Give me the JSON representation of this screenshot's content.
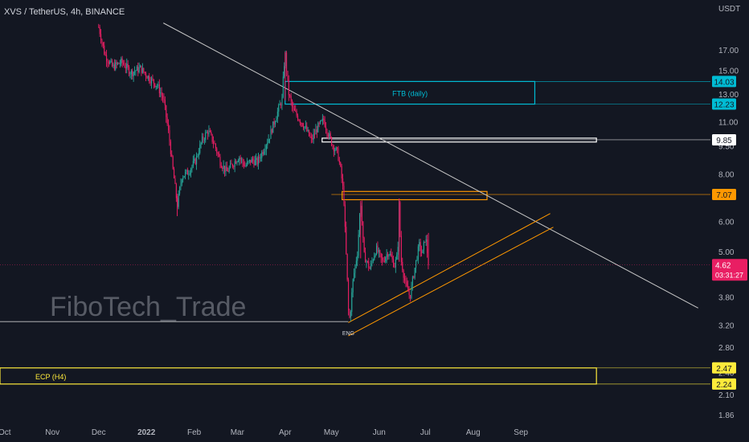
{
  "header": {
    "symbol": "XVS / TetherUS, 4h, BINANCE"
  },
  "watermark": "FiboTech_Trade",
  "colors": {
    "bg": "#131722",
    "text": "#d1d4dc",
    "axis_text": "#b2b5be",
    "up": "#26a69a",
    "down": "#e91e63",
    "cyan": "#00bcd4",
    "orange": "#ff9800",
    "yellow": "#ffeb3b",
    "white": "#ffffff",
    "last": "#e91e63",
    "line": "#c8c8c8"
  },
  "chart_data": {
    "type": "candlestick",
    "title": "XVS / TetherUS, 4h, BINANCE",
    "y_scale": "log",
    "y_unit": "USDT",
    "ylim": [
      1.78,
      19.5
    ],
    "y_ticks": [
      "17.00",
      "15.00",
      "13.00",
      "11.00",
      "9.50",
      "8.00",
      "6.00",
      "5.00",
      "3.80",
      "3.20",
      "2.80",
      "2.40",
      "2.10",
      "1.86"
    ],
    "x_ticks": [
      "Oct",
      "Nov",
      "Dec",
      "2022",
      "Feb",
      "Mar",
      "Apr",
      "May",
      "Jun",
      "Jul",
      "Aug",
      "Sep"
    ],
    "price_trace": [
      [
        "2021-12-01",
        19.5
      ],
      [
        "2021-12-05",
        16.5
      ],
      [
        "2021-12-10",
        15.3
      ],
      [
        "2021-12-16",
        15.8
      ],
      [
        "2021-12-22",
        14.8
      ],
      [
        "2021-12-28",
        15.2
      ],
      [
        "2022-01-03",
        14.3
      ],
      [
        "2022-01-08",
        13.7
      ],
      [
        "2022-01-12",
        12.6
      ],
      [
        "2022-01-15",
        10.5
      ],
      [
        "2022-01-18",
        8.3
      ],
      [
        "2022-01-21",
        6.6
      ],
      [
        "2022-01-24",
        7.9
      ],
      [
        "2022-01-28",
        8.1
      ],
      [
        "2022-02-02",
        8.7
      ],
      [
        "2022-02-06",
        9.8
      ],
      [
        "2022-02-10",
        10.4
      ],
      [
        "2022-02-14",
        9.6
      ],
      [
        "2022-02-18",
        8.6
      ],
      [
        "2022-02-22",
        8.1
      ],
      [
        "2022-02-26",
        8.5
      ],
      [
        "2022-03-02",
        8.9
      ],
      [
        "2022-03-06",
        8.4
      ],
      [
        "2022-03-10",
        8.7
      ],
      [
        "2022-03-14",
        8.6
      ],
      [
        "2022-03-18",
        9.3
      ],
      [
        "2022-03-22",
        10.1
      ],
      [
        "2022-03-26",
        11.3
      ],
      [
        "2022-03-30",
        12.6
      ],
      [
        "2022-04-01",
        16.8
      ],
      [
        "2022-04-03",
        13.2
      ],
      [
        "2022-04-06",
        11.8
      ],
      [
        "2022-04-10",
        11.2
      ],
      [
        "2022-04-14",
        10.6
      ],
      [
        "2022-04-18",
        9.8
      ],
      [
        "2022-04-22",
        10.6
      ],
      [
        "2022-04-26",
        11.1
      ],
      [
        "2022-04-29",
        10.2
      ],
      [
        "2022-05-02",
        9.5
      ],
      [
        "2022-05-05",
        9.1
      ],
      [
        "2022-05-07",
        8.2
      ],
      [
        "2022-05-09",
        7.0
      ],
      [
        "2022-05-10",
        5.5
      ],
      [
        "2022-05-12",
        3.5
      ],
      [
        "2022-05-13",
        3.3
      ],
      [
        "2022-05-15",
        4.2
      ],
      [
        "2022-05-18",
        5.0
      ],
      [
        "2022-05-20",
        6.8
      ],
      [
        "2022-05-22",
        4.9
      ],
      [
        "2022-05-26",
        4.5
      ],
      [
        "2022-05-30",
        5.1
      ],
      [
        "2022-06-03",
        4.7
      ],
      [
        "2022-06-07",
        5.0
      ],
      [
        "2022-06-11",
        4.6
      ],
      [
        "2022-06-13",
        4.9
      ],
      [
        "2022-06-14",
        6.8
      ],
      [
        "2022-06-15",
        4.8
      ],
      [
        "2022-06-18",
        4.1
      ],
      [
        "2022-06-21",
        3.8
      ],
      [
        "2022-06-24",
        4.5
      ],
      [
        "2022-06-27",
        5.2
      ],
      [
        "2022-06-29",
        4.9
      ],
      [
        "2022-07-01",
        5.5
      ],
      [
        "2022-07-03",
        4.62
      ]
    ],
    "zones": [
      {
        "label": "FTB (daily)",
        "top": 14.03,
        "bottom": 12.23,
        "x_from": "2022-04-01",
        "x_to": "2022-09-10",
        "color": "#00bcd4"
      },
      {
        "label": "",
        "top": 9.95,
        "bottom": 9.72,
        "x_from": "2022-04-25",
        "x_to": "2022-10-20",
        "color": "#ffffff"
      },
      {
        "label": "",
        "top": 7.2,
        "bottom": 6.85,
        "x_from": "2022-05-08",
        "x_to": "2022-08-10",
        "color": "#ff9800"
      },
      {
        "label": "ECP (H4)",
        "top": 2.47,
        "bottom": 2.24,
        "x_from": "2021-09-28",
        "x_to": "2022-10-20",
        "color": "#ffeb3b"
      }
    ],
    "price_labels": [
      {
        "value": 14.03,
        "text": "14.03",
        "color": "#00bcd4",
        "text_color": "#131722"
      },
      {
        "value": 12.23,
        "text": "12.23",
        "color": "#00bcd4",
        "text_color": "#131722"
      },
      {
        "value": 9.85,
        "text": "9.85",
        "color": "#ffffff",
        "text_color": "#131722"
      },
      {
        "value": 7.07,
        "text": "7.07",
        "color": "#ff9800",
        "text_color": "#131722"
      },
      {
        "value": 2.47,
        "text": "2.47",
        "color": "#ffeb3b",
        "text_color": "#131722"
      },
      {
        "value": 2.24,
        "text": "2.24",
        "color": "#ffeb3b",
        "text_color": "#131722"
      }
    ],
    "last_price": {
      "value": 4.62,
      "text": "4.62",
      "countdown": "03:31:27"
    },
    "trendline": {
      "from": [
        "2022-01-12",
        20.0
      ],
      "to": [
        "2022-12-25",
        3.55
      ]
    },
    "channel": [
      {
        "from": [
          "2022-05-12",
          3.25
        ],
        "to": [
          "2022-09-20",
          6.3
        ]
      },
      {
        "from": [
          "2022-05-12",
          3.0
        ],
        "to": [
          "2022-09-22",
          5.8
        ]
      }
    ],
    "support_line": {
      "value": 3.27,
      "x_from": "2021-09-28",
      "x_to": "2022-05-12"
    },
    "annotation": {
      "text": "ENG",
      "date": "2022-05-12",
      "value": 3.15
    }
  }
}
